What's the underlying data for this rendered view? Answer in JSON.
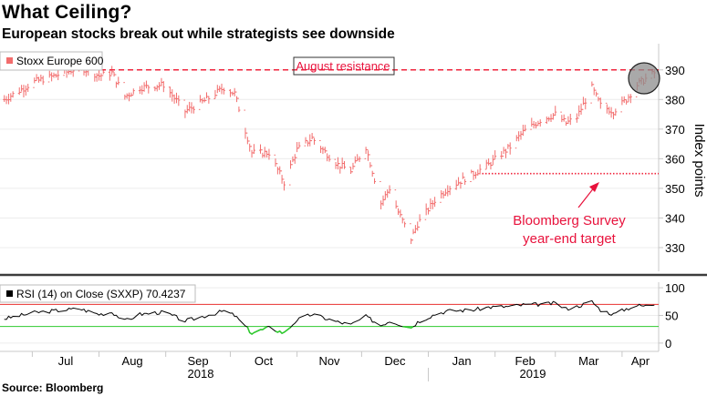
{
  "header": {
    "title": "What Ceiling?",
    "subtitle": "European stocks break out while strategists see downside"
  },
  "footer": {
    "source": "Source: Bloomberg"
  },
  "colors": {
    "price_series": "#f26d6d",
    "resistance_line": "#f0243c",
    "annotation_text": "#e8123c",
    "rsi_line": "#000000",
    "rsi_overbought": "#e8312f",
    "rsi_oversold": "#2ec92e",
    "grid": "#ececec",
    "axis": "#c8c8c8",
    "divider": "#3c3c3c",
    "marker_circle": "#8c8c8c"
  },
  "chart_data": [
    {
      "type": "line",
      "legend": [
        "Stoxx Europe 600"
      ],
      "legend_placement": "top-left",
      "ylabel": "Index points",
      "y_axis_side": "right",
      "yticks": [
        330,
        340,
        350,
        360,
        370,
        380,
        390
      ],
      "ylim": [
        322,
        397
      ],
      "xlim": [
        "2018-06-16",
        "2019-04-18"
      ],
      "x_month_ticks": [
        "Jul",
        "Aug",
        "Sep",
        "Oct",
        "Nov",
        "Dec",
        "Jan",
        "Feb",
        "Mar",
        "Apr"
      ],
      "x_year_labels": [
        "2018",
        "2019"
      ],
      "grid": "horizontal",
      "x": [
        "2018-06-18",
        "2018-07-02",
        "2018-07-16",
        "2018-07-23",
        "2018-08-01",
        "2018-08-07",
        "2018-08-13",
        "2018-08-20",
        "2018-08-31",
        "2018-09-10",
        "2018-09-20",
        "2018-09-28",
        "2018-10-03",
        "2018-10-11",
        "2018-10-19",
        "2018-10-26",
        "2018-11-01",
        "2018-11-08",
        "2018-11-13",
        "2018-11-20",
        "2018-11-26",
        "2018-12-03",
        "2018-12-10",
        "2018-12-14",
        "2018-12-18",
        "2018-12-24",
        "2018-12-27",
        "2019-01-04",
        "2019-01-10",
        "2019-01-22",
        "2019-01-29",
        "2019-02-08",
        "2019-02-14",
        "2019-02-22",
        "2019-03-01",
        "2019-03-06",
        "2019-03-11",
        "2019-03-18",
        "2019-03-22",
        "2019-03-28",
        "2019-04-03",
        "2019-04-08",
        "2019-04-12",
        "2019-04-16"
      ],
      "series": [
        {
          "name": "Stoxx Europe 600",
          "values": [
            380,
            386,
            389,
            391,
            388,
            389,
            381,
            384,
            385,
            376,
            380,
            384,
            382,
            362,
            362,
            352,
            363,
            367,
            363,
            358,
            356,
            364,
            345,
            350,
            342,
            333,
            338,
            346,
            350,
            355,
            358,
            364,
            369,
            373,
            375,
            372,
            374,
            384,
            378,
            376,
            380,
            385,
            387,
            389
          ]
        }
      ],
      "annotations": {
        "resistance_label": "August resistance",
        "resistance_level": 390,
        "resistance_start": "2018-06-16",
        "target_label_line1": "Bloomberg Survey",
        "target_label_line2": "year-end target",
        "target_level": 355,
        "target_start": "2019-01-26"
      }
    },
    {
      "type": "line",
      "legend": [
        "RSI (14)  on Close (SXXP) 70.4237"
      ],
      "legend_placement": "top-left",
      "yticks": [
        0,
        50,
        100
      ],
      "ylim": [
        -15,
        110
      ],
      "reference_lines": [
        70,
        30
      ],
      "grid": "horizontal",
      "x": [
        "2018-06-18",
        "2018-07-02",
        "2018-07-16",
        "2018-07-23",
        "2018-08-01",
        "2018-08-07",
        "2018-08-13",
        "2018-08-20",
        "2018-08-31",
        "2018-09-10",
        "2018-09-20",
        "2018-09-28",
        "2018-10-03",
        "2018-10-11",
        "2018-10-19",
        "2018-10-26",
        "2018-11-01",
        "2018-11-08",
        "2018-11-13",
        "2018-11-20",
        "2018-11-26",
        "2018-12-03",
        "2018-12-10",
        "2018-12-14",
        "2018-12-18",
        "2018-12-24",
        "2018-12-27",
        "2019-01-04",
        "2019-01-10",
        "2019-01-22",
        "2019-01-29",
        "2019-02-08",
        "2019-02-14",
        "2019-02-22",
        "2019-03-01",
        "2019-03-06",
        "2019-03-11",
        "2019-03-18",
        "2019-03-22",
        "2019-03-28",
        "2019-04-03",
        "2019-04-08",
        "2019-04-12",
        "2019-04-16"
      ],
      "series": [
        {
          "name": "RSI (14)",
          "values": [
            44,
            55,
            60,
            62,
            52,
            56,
            40,
            52,
            56,
            40,
            50,
            58,
            50,
            18,
            28,
            18,
            42,
            52,
            46,
            38,
            33,
            48,
            32,
            40,
            35,
            28,
            38,
            52,
            58,
            60,
            65,
            66,
            69,
            70,
            72,
            62,
            66,
            75,
            60,
            52,
            62,
            68,
            67,
            70.4
          ]
        }
      ]
    }
  ]
}
